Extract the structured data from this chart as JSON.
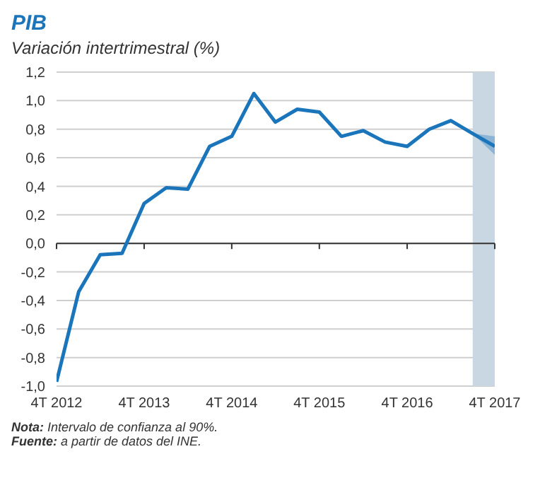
{
  "chart_data": {
    "type": "line",
    "title": "PIB",
    "subtitle": "Variación intertrimestral (%)",
    "x": [
      "2012-10",
      "2013-01",
      "2013-04",
      "2013-07",
      "2013-10",
      "2014-01",
      "2014-04",
      "2014-07",
      "2014-10",
      "2015-01",
      "2015-04",
      "2015-07",
      "2015-10",
      "2016-01",
      "2016-04",
      "2016-07",
      "2016-10",
      "2017-01",
      "2017-04",
      "2017-07",
      "2017-10"
    ],
    "series": [
      {
        "color": "#1a75bb",
        "values": [
          -0.97,
          -0.34,
          -0.08,
          -0.07,
          0.28,
          0.39,
          0.38,
          0.68,
          0.75,
          1.05,
          0.85,
          0.94,
          0.92,
          0.75,
          0.79,
          0.71,
          0.68,
          0.8,
          0.86,
          0.77,
          0.68
        ],
        "lower": [
          null,
          null,
          null,
          null,
          null,
          null,
          null,
          null,
          null,
          null,
          null,
          null,
          null,
          null,
          null,
          null,
          null,
          null,
          null,
          0.77,
          0.62
        ],
        "upper": [
          null,
          null,
          null,
          null,
          null,
          null,
          null,
          null,
          null,
          null,
          null,
          null,
          null,
          null,
          null,
          null,
          null,
          null,
          null,
          0.77,
          0.75
        ]
      }
    ],
    "xlim": [
      "2012-10",
      "2017-10"
    ],
    "xticks": [
      {
        "value": "2012-10",
        "label": "4T 2012"
      },
      {
        "value": "2013-10",
        "label": "4T 2013"
      },
      {
        "value": "2014-10",
        "label": "4T 2014"
      },
      {
        "value": "2015-10",
        "label": "4T 2015"
      },
      {
        "value": "2016-10",
        "label": "4T 2016"
      },
      {
        "value": "2017-10",
        "label": "4T 2017"
      }
    ],
    "ylim": [
      -1,
      1.2
    ],
    "yticks": [
      {
        "value": -1,
        "label": "-1,0"
      },
      {
        "value": -0.8,
        "label": "-0,8"
      },
      {
        "value": -0.6,
        "label": "-0,6"
      },
      {
        "value": -0.4,
        "label": "-0,4"
      },
      {
        "value": -0.2,
        "label": "-0,2"
      },
      {
        "value": 0,
        "label": "0,0"
      },
      {
        "value": 0.2,
        "label": "0,2"
      },
      {
        "value": 0.4,
        "label": "0,4"
      },
      {
        "value": 0.6,
        "label": "0,6"
      },
      {
        "value": 0.8,
        "label": "0,8"
      },
      {
        "value": 1,
        "label": "1,0"
      },
      {
        "value": 1.2,
        "label": "1,2"
      }
    ],
    "bands": [
      {
        "axis": "x",
        "from": "2017-07",
        "to": "2017-10",
        "color": "#c9d7e3"
      }
    ],
    "grid": "y",
    "legend": false,
    "marker": "none",
    "line_style": "solid",
    "annotations": [
      "Nota: Intervalo de confianza al 90%.",
      "Fuente: a partir de datos del INE."
    ]
  }
}
